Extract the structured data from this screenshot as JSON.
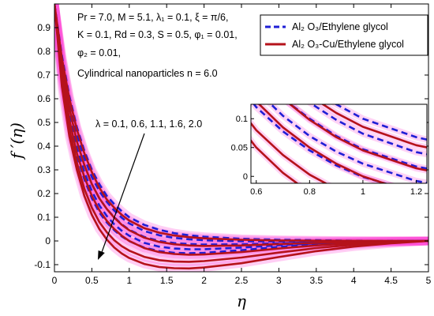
{
  "chart_data": {
    "type": "line",
    "xlabel": "η",
    "ylabel": "f ′(η)",
    "xlim": [
      0,
      5
    ],
    "ylim": [
      -0.13,
      1.0
    ],
    "xticks": [
      0,
      0.5,
      1,
      1.5,
      2,
      2.5,
      3,
      3.5,
      4,
      4.5,
      5
    ],
    "xtick_labels": [
      "0",
      "0.5",
      "1",
      "1.5",
      "2",
      "2.5",
      "3",
      "3.5",
      "4",
      "4.5",
      "5"
    ],
    "yticks": [
      -0.1,
      0,
      0.1,
      0.2,
      0.3,
      0.4,
      0.5,
      0.6,
      0.7,
      0.8,
      0.9
    ],
    "ytick_labels": [
      "-0.1",
      "0",
      "0.1",
      "0.2",
      "0.3",
      "0.4",
      "0.5",
      "0.6",
      "0.7",
      "0.8",
      "0.9"
    ],
    "grid": false,
    "legend_placement": "top-right",
    "parameters": [
      "Pr = 7.0, M = 5.1, λ₁ = 0.1, ξ = π/6,",
      "K = 0.1, Rd = 0.3, S = 0.5, φ₁ = 0.01,",
      "φ₂ = 0.01,",
      "Cylindrical nanoparticles n = 6.0"
    ],
    "annotation": "λ = 0.1, 0.6, 1.1, 1.6, 2.0",
    "lambda_values": [
      0.1,
      0.6,
      1.1,
      1.6,
      2.0
    ],
    "series": [
      {
        "name": "Al₂ O₃/Ethylene glycol",
        "style": "dashed",
        "color": "#1f1fd6",
        "curves": [
          {
            "x": [
              0,
              0.1,
              0.2,
              0.3,
              0.4,
              0.5,
              0.6,
              0.7,
              0.8,
              0.9,
              1.0,
              1.2,
              1.4,
              1.6,
              1.8,
              2.0,
              2.5,
              3.0,
              3.5,
              4.0,
              4.5,
              5.0
            ],
            "y": [
              1.0,
              0.78,
              0.61,
              0.48,
              0.38,
              0.3,
              0.24,
              0.19,
              0.155,
              0.125,
              0.1,
              0.068,
              0.047,
              0.033,
              0.024,
              0.018,
              0.009,
              0.005,
              0.003,
              0.001,
              0.0005,
              0.0
            ]
          },
          {
            "x": [
              0,
              0.1,
              0.2,
              0.3,
              0.4,
              0.5,
              0.6,
              0.7,
              0.8,
              0.9,
              1.0,
              1.2,
              1.4,
              1.6,
              1.8,
              2.0,
              2.5,
              3.0,
              3.5,
              4.0,
              4.5,
              5.0
            ],
            "y": [
              1.0,
              0.76,
              0.58,
              0.45,
              0.35,
              0.27,
              0.21,
              0.165,
              0.128,
              0.098,
              0.074,
              0.042,
              0.024,
              0.013,
              0.007,
              0.003,
              -0.001,
              -0.002,
              -0.002,
              -0.001,
              -0.0005,
              0.0
            ]
          },
          {
            "x": [
              0,
              0.1,
              0.2,
              0.3,
              0.4,
              0.5,
              0.6,
              0.7,
              0.8,
              0.9,
              1.0,
              1.2,
              1.4,
              1.6,
              1.8,
              2.0,
              2.5,
              3.0,
              3.5,
              4.0,
              4.5,
              5.0
            ],
            "y": [
              1.0,
              0.74,
              0.55,
              0.42,
              0.32,
              0.24,
              0.18,
              0.135,
              0.1,
              0.07,
              0.047,
              0.017,
              0.0,
              -0.009,
              -0.013,
              -0.015,
              -0.014,
              -0.01,
              -0.006,
              -0.003,
              -0.001,
              0.0
            ]
          },
          {
            "x": [
              0,
              0.1,
              0.2,
              0.3,
              0.4,
              0.5,
              0.6,
              0.7,
              0.8,
              0.9,
              1.0,
              1.2,
              1.4,
              1.6,
              1.8,
              2.0,
              2.5,
              3.0,
              3.5,
              4.0,
              4.5,
              5.0
            ],
            "y": [
              1.0,
              0.72,
              0.52,
              0.39,
              0.29,
              0.21,
              0.15,
              0.105,
              0.07,
              0.043,
              0.022,
              -0.008,
              -0.024,
              -0.032,
              -0.035,
              -0.035,
              -0.028,
              -0.018,
              -0.01,
              -0.005,
              -0.002,
              0.0
            ]
          },
          {
            "x": [
              0,
              0.1,
              0.2,
              0.3,
              0.4,
              0.5,
              0.6,
              0.7,
              0.8,
              0.9,
              1.0,
              1.2,
              1.4,
              1.6,
              1.8,
              2.0,
              2.5,
              3.0,
              3.5,
              4.0,
              4.5,
              5.0
            ],
            "y": [
              1.0,
              0.7,
              0.5,
              0.36,
              0.26,
              0.18,
              0.12,
              0.078,
              0.045,
              0.019,
              -0.001,
              -0.028,
              -0.043,
              -0.05,
              -0.052,
              -0.05,
              -0.039,
              -0.025,
              -0.014,
              -0.007,
              -0.003,
              0.0
            ]
          }
        ]
      },
      {
        "name": "Al₂ O₃-Cu/Ethylene glycol",
        "style": "solid",
        "color": "#b5121b",
        "curves": [
          {
            "x": [
              0,
              0.1,
              0.2,
              0.3,
              0.4,
              0.5,
              0.6,
              0.7,
              0.8,
              0.9,
              1.0,
              1.2,
              1.4,
              1.6,
              1.8,
              2.0,
              2.5,
              3.0,
              3.5,
              4.0,
              4.5,
              5.0
            ],
            "y": [
              1.0,
              0.77,
              0.6,
              0.47,
              0.37,
              0.29,
              0.225,
              0.175,
              0.14,
              0.11,
              0.086,
              0.054,
              0.035,
              0.023,
              0.016,
              0.011,
              0.005,
              0.002,
              0.001,
              0.0005,
              0.0002,
              0.0
            ]
          },
          {
            "x": [
              0,
              0.1,
              0.2,
              0.3,
              0.4,
              0.5,
              0.6,
              0.7,
              0.8,
              0.9,
              1.0,
              1.2,
              1.4,
              1.6,
              1.8,
              2.0,
              2.5,
              3.0,
              3.5,
              4.0,
              4.5,
              5.0
            ],
            "y": [
              1.0,
              0.74,
              0.56,
              0.42,
              0.32,
              0.24,
              0.18,
              0.135,
              0.098,
              0.068,
              0.045,
              0.014,
              -0.004,
              -0.014,
              -0.019,
              -0.021,
              -0.019,
              -0.013,
              -0.008,
              -0.004,
              -0.002,
              0.0
            ]
          },
          {
            "x": [
              0,
              0.1,
              0.2,
              0.3,
              0.4,
              0.5,
              0.6,
              0.7,
              0.8,
              0.9,
              1.0,
              1.2,
              1.4,
              1.6,
              1.8,
              2.0,
              2.5,
              3.0,
              3.5,
              4.0,
              4.5,
              5.0
            ],
            "y": [
              1.0,
              0.71,
              0.51,
              0.37,
              0.27,
              0.19,
              0.13,
              0.085,
              0.05,
              0.022,
              0.0,
              -0.03,
              -0.047,
              -0.055,
              -0.058,
              -0.057,
              -0.047,
              -0.032,
              -0.019,
              -0.01,
              -0.004,
              0.0
            ]
          },
          {
            "x": [
              0,
              0.1,
              0.2,
              0.3,
              0.4,
              0.5,
              0.6,
              0.7,
              0.8,
              0.9,
              1.0,
              1.2,
              1.4,
              1.6,
              1.8,
              2.0,
              2.5,
              3.0,
              3.5,
              4.0,
              4.5,
              5.0
            ],
            "y": [
              1.0,
              0.68,
              0.47,
              0.33,
              0.22,
              0.14,
              0.08,
              0.037,
              0.003,
              -0.022,
              -0.041,
              -0.067,
              -0.081,
              -0.087,
              -0.088,
              -0.085,
              -0.07,
              -0.049,
              -0.03,
              -0.016,
              -0.007,
              0.0
            ]
          },
          {
            "x": [
              0,
              0.1,
              0.2,
              0.3,
              0.4,
              0.5,
              0.6,
              0.7,
              0.8,
              0.9,
              1.0,
              1.2,
              1.4,
              1.6,
              1.8,
              2.0,
              2.5,
              3.0,
              3.5,
              4.0,
              4.5,
              5.0
            ],
            "y": [
              1.0,
              0.65,
              0.44,
              0.3,
              0.19,
              0.11,
              0.05,
              0.006,
              -0.028,
              -0.053,
              -0.072,
              -0.097,
              -0.11,
              -0.115,
              -0.116,
              -0.112,
              -0.094,
              -0.068,
              -0.043,
              -0.024,
              -0.01,
              0.0
            ]
          }
        ]
      }
    ],
    "inset": {
      "xlim": [
        0.58,
        1.24
      ],
      "ylim": [
        -0.012,
        0.125
      ],
      "xticks": [
        0.6,
        0.8,
        1,
        1.2
      ],
      "xtick_labels": [
        "0.6",
        "0.8",
        "1",
        "1.2"
      ],
      "yticks": [
        0,
        0.05,
        0.1
      ],
      "ytick_labels": [
        "0",
        "0.05",
        "0.1"
      ]
    }
  }
}
